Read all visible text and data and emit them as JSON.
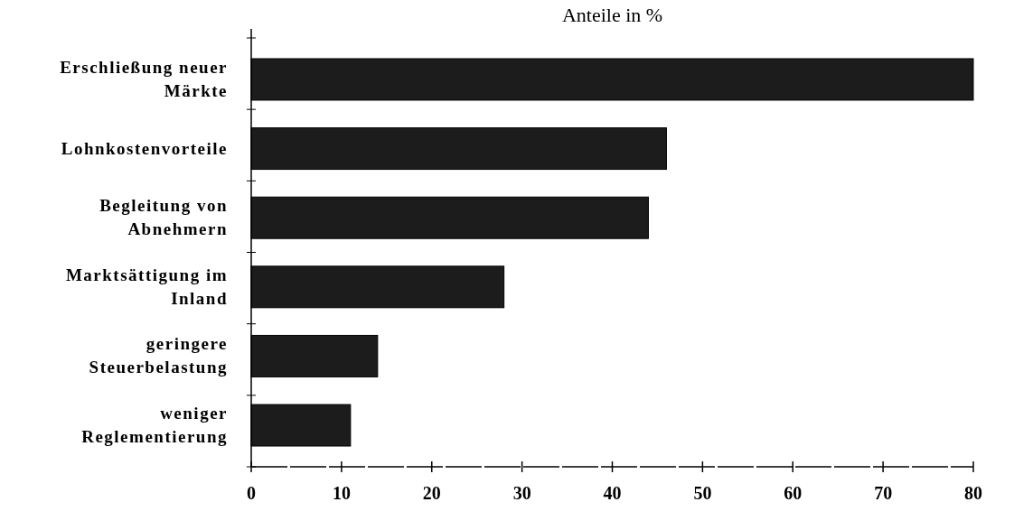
{
  "chart_data": {
    "type": "bar",
    "orientation": "horizontal",
    "title": "Anteile in %",
    "categories": [
      "Erschließung neuer Märkte",
      "Lohnkostenvorteile",
      "Begleitung von Abnehmern",
      "Marktsättigung im Inland",
      "geringere Steuerbelastung",
      "weniger Reglementierung"
    ],
    "values": [
      80,
      46,
      44,
      28,
      14,
      11
    ],
    "color": "#1c1c1c",
    "xlim": [
      0,
      80
    ],
    "xticks": [
      0,
      10,
      20,
      30,
      40,
      50,
      60,
      70,
      80
    ],
    "grid": false
  }
}
